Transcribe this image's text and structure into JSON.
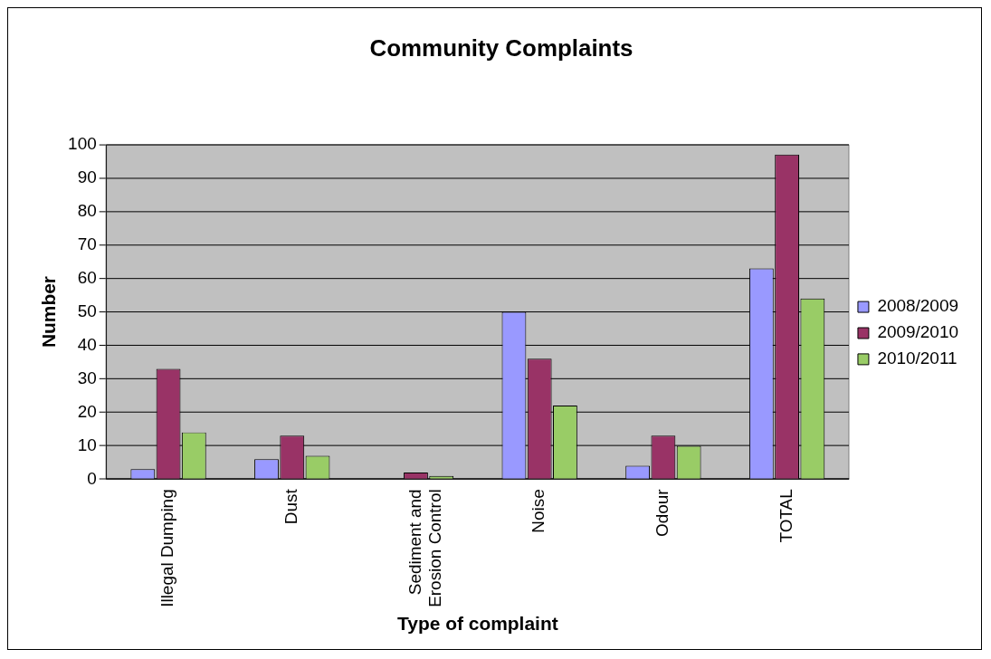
{
  "chart_data": {
    "type": "bar",
    "title": "Community Complaints",
    "xlabel": "Type of complaint",
    "ylabel": "Number",
    "categories": [
      "Illegal Dumping",
      "Dust",
      "Sediment and Erosion Control",
      "Noise",
      "Odour",
      "TOTAL"
    ],
    "series": [
      {
        "name": "2008/2009",
        "color": "#9999ff",
        "values": [
          3,
          6,
          0,
          50,
          4,
          63
        ]
      },
      {
        "name": "2009/2010",
        "color": "#993366",
        "values": [
          33,
          13,
          2,
          36,
          13,
          97
        ]
      },
      {
        "name": "2010/2011",
        "color": "#99cc66",
        "values": [
          14,
          7,
          1,
          22,
          10,
          54
        ]
      }
    ],
    "ylim": [
      0,
      100
    ],
    "yticks": [
      0,
      10,
      20,
      30,
      40,
      50,
      60,
      70,
      80,
      90,
      100
    ],
    "grid": "y",
    "legend": "right"
  }
}
